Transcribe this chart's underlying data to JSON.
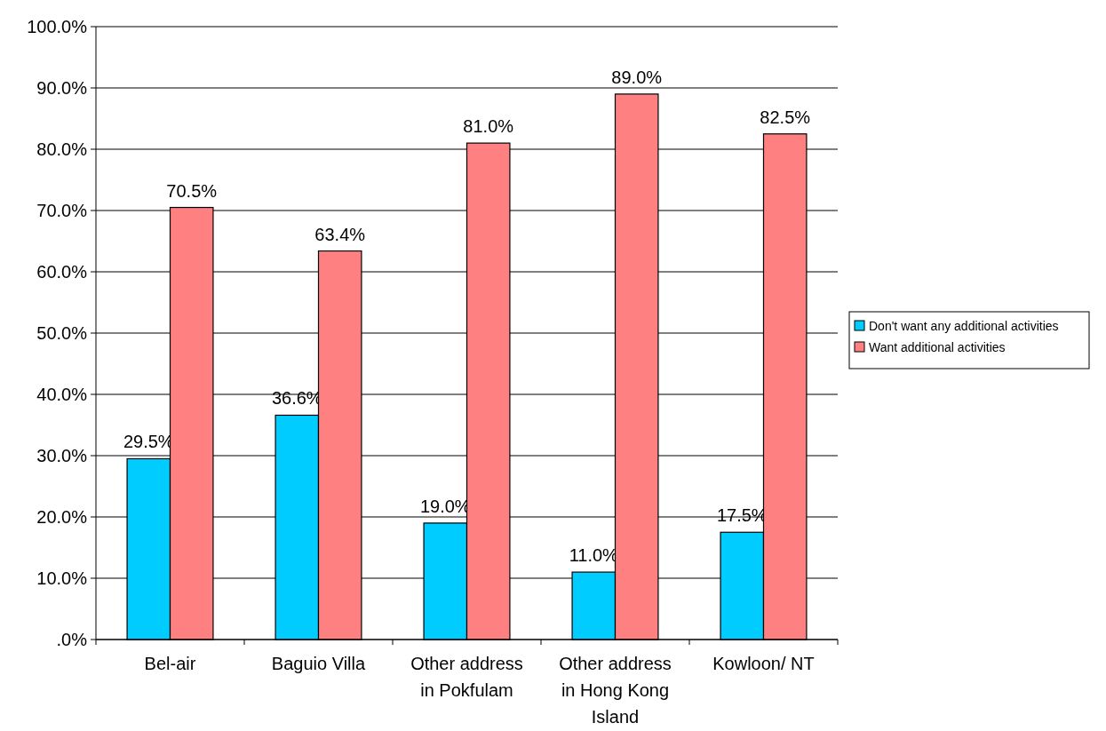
{
  "chart_data": {
    "type": "bar",
    "categories": [
      "Bel-air",
      "Baguio Villa",
      "Other address in Pokfulam",
      "Other address in Hong Kong Island",
      "Kowloon/ NT"
    ],
    "series": [
      {
        "name": "Don't want any additional activities",
        "color": "#00ccff",
        "values": [
          29.5,
          36.6,
          19.0,
          11.0,
          17.5
        ],
        "value_labels": [
          "29.5%",
          "36.6%",
          "19.0%",
          "11.0%",
          "17.5%"
        ]
      },
      {
        "name": "Want additional activities",
        "color": "#ff8080",
        "values": [
          70.5,
          63.4,
          81.0,
          89.0,
          82.5
        ],
        "value_labels": [
          "70.5%",
          "63.4%",
          "81.0%",
          "89.0%",
          "82.5%"
        ]
      }
    ],
    "ylim": [
      0,
      100
    ],
    "yticks": [
      {
        "value": 0,
        "label": ".0%"
      },
      {
        "value": 10,
        "label": "10.0%"
      },
      {
        "value": 20,
        "label": "20.0%"
      },
      {
        "value": 30,
        "label": "30.0%"
      },
      {
        "value": 40,
        "label": "40.0%"
      },
      {
        "value": 50,
        "label": "50.0%"
      },
      {
        "value": 60,
        "label": "60.0%"
      },
      {
        "value": 70,
        "label": "70.0%"
      },
      {
        "value": 80,
        "label": "80.0%"
      },
      {
        "value": 90,
        "label": "90.0%"
      },
      {
        "value": 100,
        "label": "100.0%"
      }
    ],
    "grid": "y",
    "legend": "right"
  }
}
